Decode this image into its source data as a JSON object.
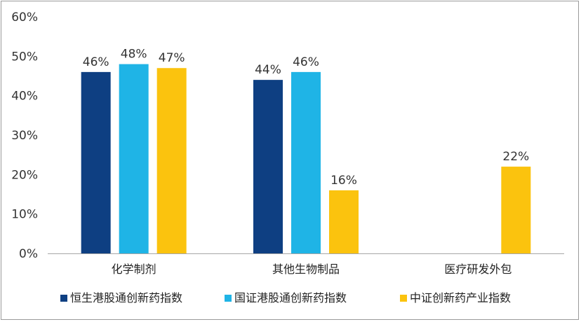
{
  "chart_data": {
    "type": "bar",
    "categories": [
      "化学制剂",
      "其他生物制品",
      "医疗研发外包"
    ],
    "series": [
      {
        "name": "恒生港股通创新药指数",
        "color": "#0e3f82",
        "values": [
          46,
          44,
          null
        ],
        "labels": [
          "46%",
          "44%",
          ""
        ]
      },
      {
        "name": "国证港股通创新药指数",
        "color": "#1fb4e6",
        "values": [
          48,
          46,
          null
        ],
        "labels": [
          "48%",
          "46%",
          ""
        ]
      },
      {
        "name": "中证创新药产业指数",
        "color": "#fbc30e",
        "values": [
          47,
          16,
          22
        ],
        "labels": [
          "47%",
          "16%",
          "22%"
        ]
      }
    ],
    "y_ticks": [
      "0%",
      "10%",
      "20%",
      "30%",
      "40%",
      "50%",
      "60%"
    ],
    "ylim": [
      0,
      60
    ],
    "grid": false,
    "legend_position": "bottom"
  }
}
